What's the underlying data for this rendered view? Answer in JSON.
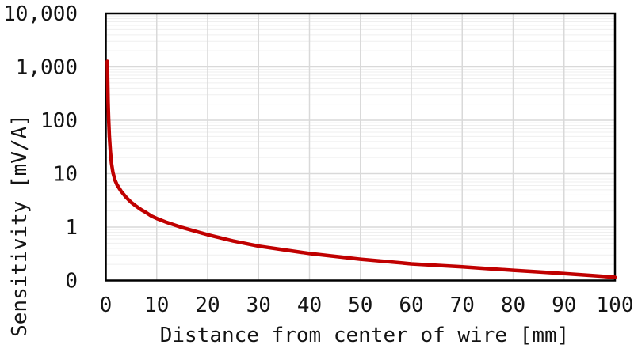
{
  "chart_data": {
    "type": "line",
    "title": "",
    "xlabel": "Distance from center of wire [mm]",
    "ylabel": "Sensitivity [mV/A]",
    "x_axis": {
      "scale": "linear",
      "min": 0,
      "max": 100,
      "tick_interval": 10,
      "tick_values": [
        0,
        10,
        20,
        30,
        40,
        50,
        60,
        70,
        80,
        90,
        100
      ],
      "tick_labels": [
        "0",
        "10",
        "20",
        "30",
        "40",
        "50",
        "60",
        "70",
        "80",
        "90",
        "100"
      ]
    },
    "y_axis": {
      "scale": "log10",
      "min": 0.1,
      "max": 10000,
      "tick_values": [
        10000,
        1000,
        100,
        10,
        1,
        0.1
      ],
      "tick_labels": [
        "10,000",
        "1,000",
        "100",
        "10",
        "1",
        "0"
      ]
    },
    "grid": {
      "major": true,
      "minor_log": true
    },
    "legend_position": "none",
    "series": [
      {
        "name": "Sensitivity",
        "color": "#C00000",
        "x": [
          0.3,
          0.33,
          0.38,
          0.45,
          0.55,
          0.7,
          0.9,
          1.1,
          1.4,
          1.8,
          2.2,
          3,
          4,
          5,
          6,
          7,
          8,
          9,
          10,
          12,
          15,
          20,
          25,
          30,
          35,
          40,
          45,
          50,
          55,
          60,
          65,
          70,
          75,
          80,
          85,
          90,
          95,
          100
        ],
        "y": [
          1270,
          1000,
          500,
          220,
          110,
          50,
          26,
          16,
          10.5,
          7.6,
          6.2,
          4.7,
          3.6,
          2.9,
          2.45,
          2.1,
          1.85,
          1.6,
          1.45,
          1.22,
          0.98,
          0.72,
          0.55,
          0.44,
          0.375,
          0.32,
          0.283,
          0.25,
          0.227,
          0.205,
          0.192,
          0.18,
          0.167,
          0.155,
          0.145,
          0.135,
          0.125,
          0.115
        ]
      }
    ]
  },
  "styles": {
    "curve_color": "#C00000",
    "curve_width": 4.5,
    "major_grid_color": "#D9D9D9",
    "minor_grid_color": "#EFEFEF",
    "frame_color": "#000000",
    "text_color": "#141414",
    "background": "#FFFFFF"
  }
}
